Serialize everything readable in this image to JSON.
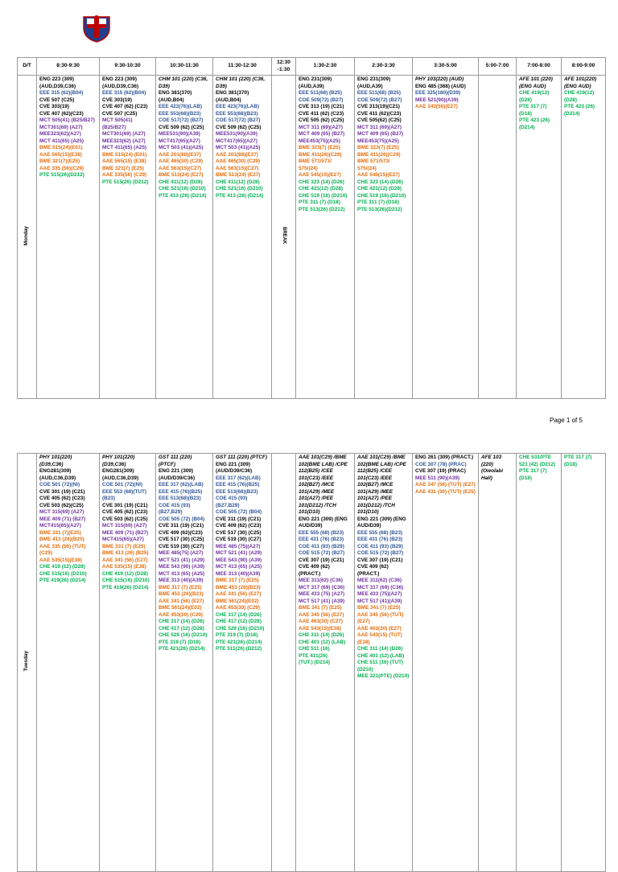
{
  "header": [
    "D/T",
    "8:30-9:30",
    "9:30-10:30",
    "10:30-11:30",
    "11:30-12:30",
    "12:30 -1:30",
    "1:30-2:30",
    "2:30-3:30",
    "3:30-5:00",
    "5:00-7:00",
    "7:00-8:00",
    "8:00-9:00"
  ],
  "palette": {
    "k": "#000000",
    "b": "#2f5597",
    "p": "#7030a0",
    "o": "#e46c0a",
    "g": "#00b050"
  },
  "footer": "Page 1 of 5",
  "days": [
    {
      "name": "Monday",
      "cells": [
        [
          [
            "ENG 223 (309) (AUD,D39,C36)",
            "k"
          ],
          [
            "EEE 315 (62)(B04)",
            "b"
          ],
          [
            "CVE 507 (C25)",
            "k"
          ],
          [
            "CVE 303(19)",
            "k"
          ],
          [
            "CVE 407 (62)(C23)",
            "k"
          ],
          [
            "MCT 505(41) (B25/B27)",
            "p"
          ],
          [
            "MCT301(69) (A27)",
            "p"
          ],
          [
            "MEE323(62)(A27)",
            "p"
          ],
          [
            "MCT 411(65) (A25)",
            "p"
          ],
          [
            "BME 515(24)(E01)",
            "o"
          ],
          [
            "AAE 565(15)(E38)",
            "o"
          ],
          [
            "BME 321(7)(E25)",
            "o"
          ],
          [
            "AAE 335 (56)(C29)",
            "o"
          ],
          [
            "PTE 515(26)(D212)",
            "g"
          ]
        ],
        [
          [
            "ENG 223 (309) (AUD,D39,C36)",
            "k"
          ],
          [
            "EEE 315 (62)(B04)",
            "b"
          ],
          [
            "CVE 303(19)",
            "k"
          ],
          [
            "CVE 407 (62) (C23)",
            "k"
          ],
          [
            "CVE 507 (C25)",
            "k"
          ],
          [
            "MCT 505(41) (B25/B27)",
            "p"
          ],
          [
            "MCT301(69) (A27)",
            "p"
          ],
          [
            "MEE323(62) (A27)",
            "p"
          ],
          [
            "MCT 411(65) (A25)",
            "p"
          ],
          [
            "BME 515(24) (E01)",
            "o"
          ],
          [
            "AAE 565(15) (E38)",
            "o"
          ],
          [
            "BME 321(7) (E25)",
            "o"
          ],
          [
            "AAE 335(56) (C29)",
            "o"
          ],
          [
            "PTE 515(26) (D212)",
            "g"
          ]
        ],
        [
          [
            "CHM 101 (220) (C36, D39)",
            "k",
            "italic"
          ],
          [
            "ENG 381(370) (AUD,B04)",
            "k"
          ],
          [
            "EEE 423(76)(LAB)",
            "b"
          ],
          [
            "EEE 553(68)(B23)",
            "b"
          ],
          [
            "COE 517(72) (B27)",
            "b"
          ],
          [
            "CVE 509 (62) (C25)",
            "k"
          ],
          [
            "MEE531(90)(A39)",
            "p"
          ],
          [
            "MCT417(65)(A27)",
            "p"
          ],
          [
            "MCT 503 (41)(A25)",
            "p"
          ],
          [
            "AAE 201(88)(E37)",
            "o"
          ],
          [
            "AAE 465(30) (C29)",
            "o"
          ],
          [
            "AAE 563(15)(C27)",
            "o"
          ],
          [
            "BME 513(24) (E27)",
            "o"
          ],
          [
            "CHE 411(12) (D28)",
            "g"
          ],
          [
            "CHE 521(16) (D210)",
            "g"
          ],
          [
            "PTE 413 (26) (D214)",
            "g"
          ]
        ],
        [
          [
            "CHM 101 (220) (C36, D39)",
            "k",
            "italic"
          ],
          [
            "ENG 381(370) (AUD,B04)",
            "k"
          ],
          [
            "EEE 423(76)(LAB)",
            "b"
          ],
          [
            "EEE 553(68)(B23)",
            "b"
          ],
          [
            "COE 517(72) (B27)",
            "b"
          ],
          [
            "CVE 509 (62) (C25)",
            "k"
          ],
          [
            "MEE531(90)(A39)",
            "p"
          ],
          [
            "MCT417(65)(A27)",
            "p"
          ],
          [
            "MCT 503 (41)(A25)",
            "p"
          ],
          [
            "AAE 201(88)(E37)",
            "o"
          ],
          [
            "AAE 465(30) (C29)",
            "o"
          ],
          [
            "AAE 563(15)(C27)",
            "o"
          ],
          [
            "BME 513(24) (E27)",
            "o"
          ],
          [
            "CHE 411(12) (D28)",
            "g"
          ],
          [
            "CHE 521(16) (D210)",
            "g"
          ],
          [
            "PTE 413 (26) (D214)",
            "g"
          ]
        ],
        [
          [
            "BREAK",
            "k",
            "vertical"
          ]
        ],
        [
          [
            "ENG 231(309) (AUD,A39)",
            "k"
          ],
          [
            "EEE 511(68) (B25)",
            "b"
          ],
          [
            "COE 509(72) (B27)",
            "b"
          ],
          [
            "CVE 313 (19) (C21)",
            "k"
          ],
          [
            "CVE 411 (62) (C23)",
            "k"
          ],
          [
            "CVE 505 (62) (C25)",
            "k"
          ],
          [
            "MCT 311 (69)(A27)",
            "p"
          ],
          [
            "MCT 409 (65) (B27)",
            "p"
          ],
          [
            "MEE453(75)(A25)",
            "p"
          ],
          [
            "BME 323(7) (E25)",
            "o"
          ],
          [
            "BME 411(26)(C29)",
            "o"
          ],
          [
            "BME 571/573/ 575/(24)",
            "o"
          ],
          [
            "AAE 545(15)(E27)",
            "o"
          ],
          [
            "CHE 323 (14) (D26)",
            "g"
          ],
          [
            "CHE 421(12) (D28)",
            "g"
          ],
          [
            "CHE 519 (16) (D210)",
            "g"
          ],
          [
            "PTE 311 (7) (D18)",
            "g"
          ],
          [
            "PTE 513(26) (D212)",
            "g"
          ]
        ],
        [
          [
            "ENG 231(309) (AUD,A39)",
            "k"
          ],
          [
            "EEE 511(68) (B25)",
            "b"
          ],
          [
            "COE 509(72) (B27)",
            "b"
          ],
          [
            "CVE 313(19)(C21)",
            "k"
          ],
          [
            "CVE 411 (62)(C23)",
            "k"
          ],
          [
            "CVE 505(62) (C25)",
            "k"
          ],
          [
            "MCT 311 (69)(A27)",
            "p"
          ],
          [
            "MCT 409 (65) (B27)",
            "p"
          ],
          [
            "MEE453(75)(A25)",
            "p"
          ],
          [
            "BME 323(7) (E25)",
            "o"
          ],
          [
            "BME 411(26)(C29)",
            "o"
          ],
          [
            "BME 571/573/ 575/(24)",
            "o"
          ],
          [
            "AAE 545(15)(E27)",
            "o"
          ],
          [
            "CHE 323 (14) (D26)",
            "g"
          ],
          [
            "CHE 421(12) (D28)",
            "g"
          ],
          [
            "CHE 519 (16) (D210)",
            "g"
          ],
          [
            "PTE 311 (7) (D18)",
            "g"
          ],
          [
            "PTE 513(26)(D212)",
            "g"
          ]
        ],
        [
          [
            "PHY 103(220) (AUD)",
            "k",
            "italic"
          ],
          [
            "ENG 485 (368) (AUD)",
            "k"
          ],
          [
            "EEE 325(180)(D39)",
            "b"
          ],
          [
            "MEE 521(90)(A39)",
            "p"
          ],
          [
            "AAE 343(56)(E27)",
            "o"
          ]
        ],
        [],
        [
          [
            "AFE 101 (220) (ENG AUD)",
            "k",
            "italic"
          ],
          [
            "CHE 419(12) (D28)",
            "g"
          ],
          [
            "PTE 317 (7) (D18)",
            "g"
          ],
          [
            "PTE 423 (26)(D214)",
            "g"
          ]
        ],
        [
          [
            "AFE 101(220) (ENG AUD)",
            "k",
            "italic"
          ],
          [
            "CHE 419(12) (D28)",
            "g"
          ],
          [
            "PTE 423 (26)(D214)",
            "g"
          ]
        ]
      ]
    },
    {
      "name": "Tuesday",
      "cells": [
        [
          [
            "PHY 101(220) (D39,C36)",
            "k",
            "italic"
          ],
          [
            "ENG281(309) (AUD,C36,D39)",
            "k"
          ],
          [
            "COE 501 (72)(NI)",
            "b"
          ],
          [
            "CVE 301 (19) (C21)",
            "k"
          ],
          [
            "CVE 405 (62) (C23)",
            "k"
          ],
          [
            "CVE 503 (62)(C25)",
            "k"
          ],
          [
            "MCT 315(69) (A27)",
            "p"
          ],
          [
            "MEE 409 (71) (B27)",
            "p"
          ],
          [
            "MCT415(65)(A27)",
            "p"
          ],
          [
            "BME 331 (7)(E25)",
            "o"
          ],
          [
            "BME 413 (26)(B25)",
            "o"
          ],
          [
            "AAE 335 (56) (TUT) (C29)",
            "o"
          ],
          [
            "AAE 535(15)(E38)",
            "o"
          ],
          [
            "CHE 419 (12) (D28)",
            "g"
          ],
          [
            "CHE 515(16) (D210)",
            "g"
          ],
          [
            "PTE 419(26) (D214)",
            "g"
          ]
        ],
        [
          [
            "PHY 101(220) (D39,C36)",
            "k",
            "italic"
          ],
          [
            "ENG281(309) (AUD,C36,D39)",
            "k"
          ],
          [
            "COE 501 (72)(NI)",
            "b"
          ],
          [
            "EEE 553 (68)(TUT)(B23)",
            "b"
          ],
          [
            "CVE 301 (19) (C21)",
            "k"
          ],
          [
            "CVE 405 (62) (C23)",
            "k"
          ],
          [
            "CVE 503 (62) (C25)",
            "k"
          ],
          [
            "MCT 315(69) (A27)",
            "p"
          ],
          [
            "MEE 409 (71) (B27)",
            "p"
          ],
          [
            "MCT415(65)(A27)",
            "p"
          ],
          [
            "BME 331 (7) (E25)",
            "o"
          ],
          [
            "BME 413 (26) (B25)",
            "o"
          ],
          [
            "AAE 341 (56) (E27)",
            "o"
          ],
          [
            "AAE 535(15) (E38)",
            "o"
          ],
          [
            "CHE 419 (12) (D28)",
            "g"
          ],
          [
            "CHE 515(16) (D210)",
            "g"
          ],
          [
            "PTE 419(26) (D214)",
            "g"
          ]
        ],
        [
          [
            "GST 111 (220) (PTCF)",
            "k",
            "italic"
          ],
          [
            "ENG 221 (309) (AUD/D39/C36)",
            "k"
          ],
          [
            "EEE 317 (62)(LAB)",
            "b"
          ],
          [
            "EEE 415 (76)(B25)",
            "b"
          ],
          [
            "EEE 513(68)(B23)",
            "b"
          ],
          [
            "COE 415 (93) (B27,B29)",
            "b"
          ],
          [
            "COE 505 (72) (B04)",
            "b"
          ],
          [
            "CVE 311 (19) (C21)",
            "k"
          ],
          [
            "CVE 409 (62)(C23)",
            "k"
          ],
          [
            "CVE 517 (30) (C25)",
            "k"
          ],
          [
            "CVE 519 (30) (C27)",
            "k"
          ],
          [
            "MEE 485(75) (A27)",
            "p"
          ],
          [
            "MCT 521 (41) (A29)",
            "p"
          ],
          [
            "MEE 543 (90) (A39)",
            "p"
          ],
          [
            "MCT 413 (65) (A25)",
            "p"
          ],
          [
            "MEE 313 (40)(A39)",
            "p"
          ],
          [
            "BME 317 (7) (E25)",
            "o"
          ],
          [
            "BME 453 (26)(B23)",
            "o"
          ],
          [
            "AAE 341 (56) (E27)",
            "o"
          ],
          [
            "BME 561(24)(E02)",
            "o"
          ],
          [
            "AAE 453(30) (C29)",
            "o"
          ],
          [
            "CHE 317 (14) (D26)",
            "g"
          ],
          [
            "CHE 417 (12) (D28)",
            "g"
          ],
          [
            "CHE 529 (16) (D210)",
            "g"
          ],
          [
            "PTE 319 (7) (D18)",
            "g"
          ],
          [
            "PTE 421(26) (D214)",
            "g"
          ]
        ],
        [
          [
            "GST 111 (220) (PTCF)",
            "k",
            "italic"
          ],
          [
            "ENG 221 (309) (AUD/D39/C36)",
            "k"
          ],
          [
            "EEE 317 (62)(LAB)",
            "b"
          ],
          [
            "EEE 415 (76)(B25)",
            "b"
          ],
          [
            "EEE 513(68)(B23)",
            "b"
          ],
          [
            "COE 415 (93) (B27,B29)",
            "b"
          ],
          [
            "COE 505 (72) (B04)",
            "b"
          ],
          [
            "CVE 311 (19) (C21)",
            "k"
          ],
          [
            "CVE 409 (62) (C23)",
            "k"
          ],
          [
            "CVE 517 (30) (C25)",
            "k"
          ],
          [
            "CVE 519 (30) (C27)",
            "k"
          ],
          [
            "MEE 485 (75)(A27)",
            "p"
          ],
          [
            "MCT 521 (41) (A29)",
            "p"
          ],
          [
            "MEE 543 (90) (A39)",
            "p"
          ],
          [
            "MCT 413 (65) (A25)",
            "p"
          ],
          [
            "MEE 313 (40)(A39)",
            "p"
          ],
          [
            "BME 317 (7) (E25)",
            "o"
          ],
          [
            "BME 453 (26)(B23)",
            "o"
          ],
          [
            "AAE 341 (56) (E27)",
            "o"
          ],
          [
            "BME 561(24)(E02)",
            "o"
          ],
          [
            "AAE 453(30) (C29)",
            "o"
          ],
          [
            "CHE 317 (14) (D26)",
            "g"
          ],
          [
            "CHE 417 (12) (D28)",
            "g"
          ],
          [
            "CHE 529 (16) (D210)",
            "g"
          ],
          [
            "PTE 319 (7) (D18)",
            "g"
          ],
          [
            "PTE 421(26) (D214)",
            "g"
          ],
          [
            "PTE 511(26) (D212)",
            "g"
          ]
        ],
        [],
        [
          [
            "AAE 101(C29) /BME 102(BME LAB) /CPE 112(B25) /CEE 101(C23) /EEE 102(B27) /MCE 101(A29) /MEE 101(A27) /PEE 101(D212) /TCH 101(D10)",
            "k",
            "italic"
          ],
          [
            "ENG 221 (309) (ENG AUD/D39)",
            "k"
          ],
          [
            "EEE 555 (68) (B23)",
            "b"
          ],
          [
            "EEE 431 (76) (B23)",
            "b"
          ],
          [
            "COE 411 (93) (B29)",
            "b"
          ],
          [
            "COE 515 (72) (B27)",
            "b"
          ],
          [
            "CVE 307 (19) (C21)",
            "k"
          ],
          [
            "CVE 409 (62) (PRACT.)",
            "k"
          ],
          [
            "MEE 311(62) (C36)",
            "p"
          ],
          [
            "MCT 317 (69) (C36)",
            "p"
          ],
          [
            "MEE 433 (75) (A27)",
            "p"
          ],
          [
            "MCT 517 (41) (A39)",
            "p"
          ],
          [
            "BME 341 (7) (E25)",
            "o"
          ],
          [
            "AAE 345 (56) (E27)",
            "o"
          ],
          [
            "AAE 463(30) (C27)",
            "o"
          ],
          [
            "AAE 543(15)(E38)",
            "o"
          ],
          [
            "CHE 311 (14) (D26)",
            "g"
          ],
          [
            "CHE 401 (12) (LAB)",
            "g"
          ],
          [
            "CHE 511 (16)",
            "g"
          ],
          [
            "PTE 411(26)",
            "g"
          ],
          [
            "(TUT.) (D214)",
            "g"
          ]
        ],
        [
          [
            "AAE 101(C29) /BME 102(BME LAB) /CPE 112(B25) /CEE 101(C23) /EEE 102(B27) /MCE 101(A29) /MEE 101(A27) /PEE 101(D212) /TCH 101(D10)",
            "k",
            "italic"
          ],
          [
            "ENG 221 (309) (ENG AUD/D39)",
            "k"
          ],
          [
            "EEE 555 (68) (B23)",
            "b"
          ],
          [
            "EEE 431 (76) (B23)",
            "b"
          ],
          [
            "COE 411 (93) (B29)",
            "b"
          ],
          [
            "COE 515 (72) (B27)",
            "b"
          ],
          [
            "CVE 307 (19) (C21)",
            "k"
          ],
          [
            "CVE 409 (62) (PRACT.)",
            "k"
          ],
          [
            "MEE 311(62) (C36)",
            "p"
          ],
          [
            "MCT 317 (69) (C36)",
            "p"
          ],
          [
            "MEE 433 (75)(A27)",
            "p"
          ],
          [
            "MCT 517 (41)(A39)",
            "p"
          ],
          [
            "BME 341 (7) (E25)",
            "o"
          ],
          [
            "AAE 345 (56) (TUT) (E27)",
            "o"
          ],
          [
            "AAE 463(30) (E27)",
            "o"
          ],
          [
            "AAE 543(15) (TUT)(E38)",
            "o"
          ],
          [
            "CHE 311 (14) (D26)",
            "g"
          ],
          [
            "CHE 401 (12) (LAB)",
            "g"
          ],
          [
            "CHE 511 (16) (TUT)(D210)",
            "g"
          ],
          [
            "MEE 321(PTE) (D210)",
            "g"
          ]
        ],
        [
          [
            "ENG 261 (309) (PRACT.)",
            "k"
          ],
          [
            "COE 307 (78) (PRAC)",
            "b"
          ],
          [
            "CVE 307 (19) (PRAC)",
            "k"
          ],
          [
            "MEE 511 (90)(A39)",
            "p"
          ],
          [
            "AAE 347 (56) (TUT) (E27)",
            "o"
          ],
          [
            "AAE 431 (30) (TUT) (E25)",
            "o"
          ]
        ],
        [
          [
            "AFE 103 (220) (Owolabi Hall)",
            "k",
            "italic"
          ]
        ],
        [
          [
            "CHE 531/PTE 521 (42) (D212)",
            "g"
          ],
          [
            "PTE 317 (7) (D18)",
            "g"
          ]
        ],
        [
          [
            "PTE 317 (7) (D18)",
            "g"
          ]
        ]
      ]
    }
  ]
}
